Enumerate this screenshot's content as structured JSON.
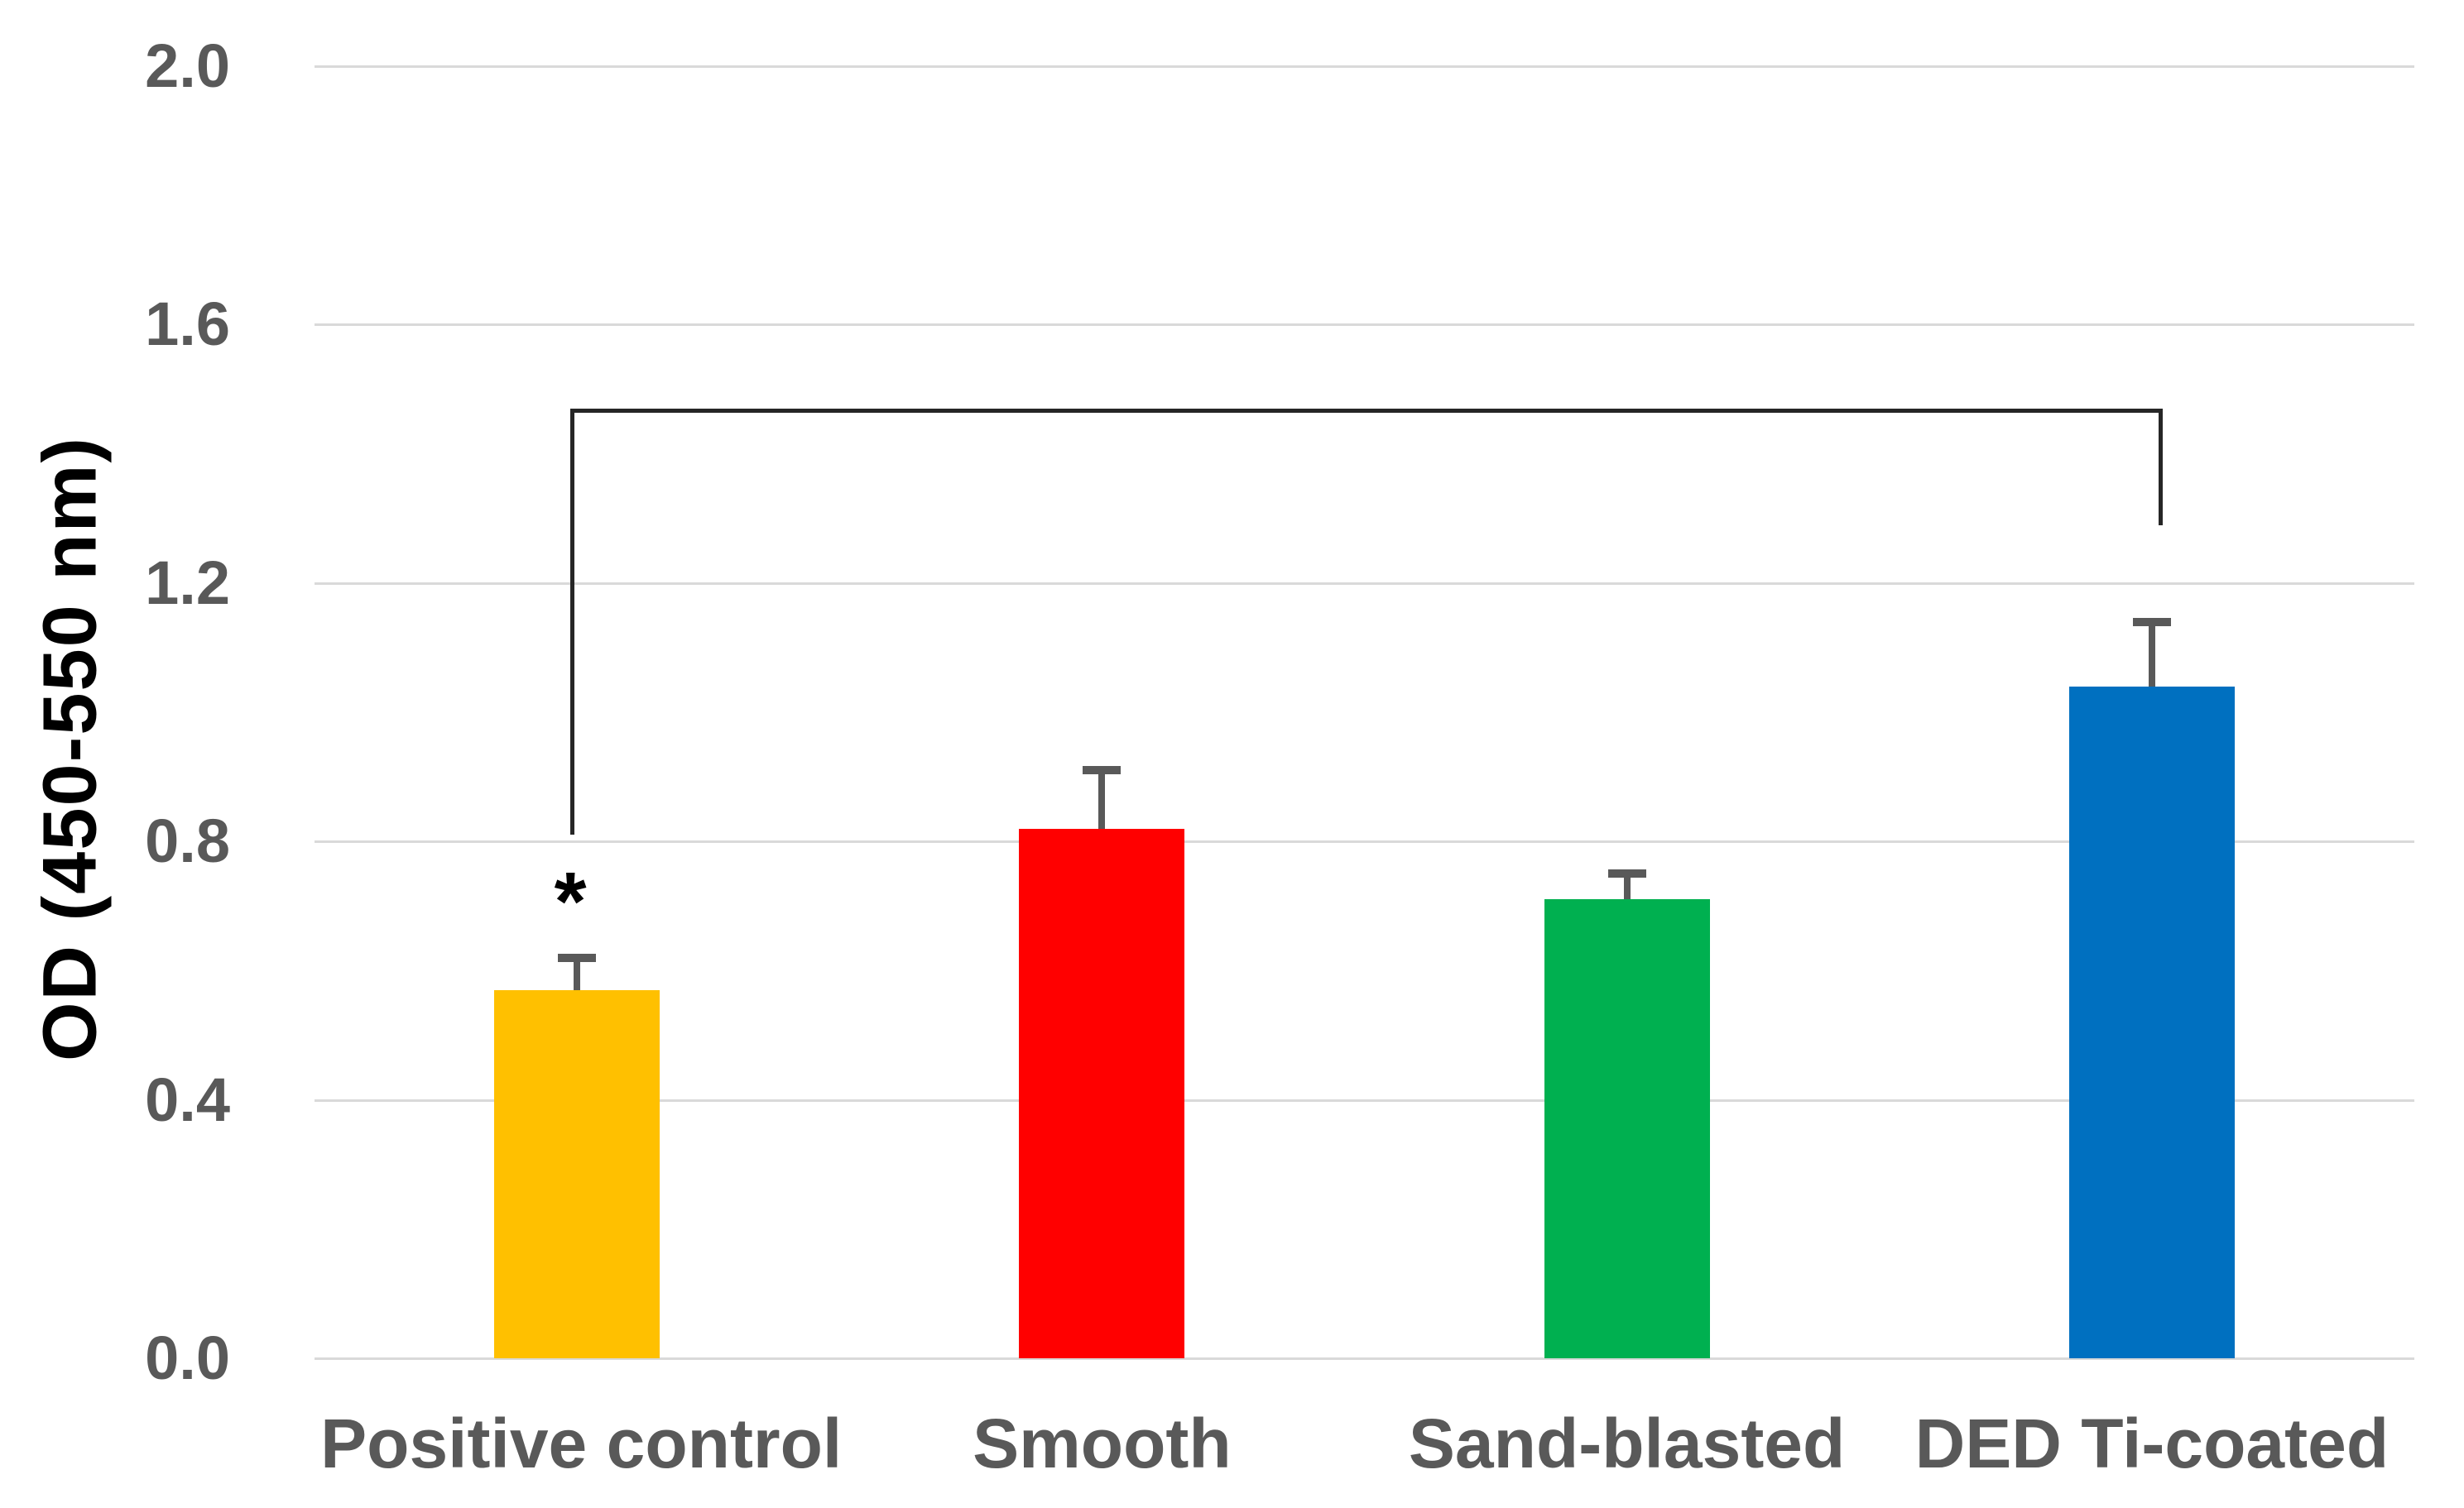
{
  "chart_data": {
    "type": "bar",
    "title": "",
    "categories": [
      "Positive control",
      "Smooth",
      "Sand-blasted",
      "DED Ti-coated"
    ],
    "values": [
      0.57,
      0.82,
      0.71,
      1.04
    ],
    "errors": [
      0.05,
      0.09,
      0.04,
      0.1
    ],
    "bar_colors": [
      "#FFC000",
      "#FF0000",
      "#00B050",
      "#0070C0"
    ],
    "xlabel": "",
    "ylabel": "OD (450-550 nm)",
    "ylim": [
      0.0,
      2.0
    ],
    "yticks": [
      2.0,
      1.6,
      1.2,
      0.8,
      0.4,
      0.0
    ],
    "ytick_labels": [
      "2.0",
      "1.6",
      "1.2",
      "0.8",
      "0.4",
      "0.0"
    ],
    "grid": true,
    "legend": false,
    "annotations": {
      "significance_marker": {
        "text": "*",
        "category": "Positive control",
        "y": 0.72
      },
      "bracket": {
        "from_category": "Positive control",
        "to_category": "DED Ti-coated",
        "top_y": 1.47,
        "left_bottom_y": 0.81,
        "right_bottom_y": 1.29
      }
    },
    "colors": {
      "grid": "#D9D9D9",
      "text": "#595959",
      "error_bar": "#595959",
      "bracket": "#262626",
      "marker": "#000000",
      "background": "#FFFFFF"
    }
  }
}
